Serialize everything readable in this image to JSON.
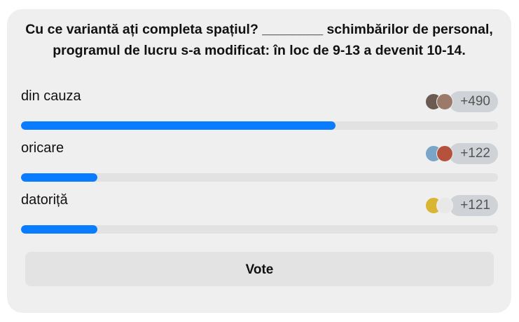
{
  "question": "Cu ce variantă ați completa spațiul? ________ schimbărilor de personal, programul de lucru s-a modificat: în loc de 9-13 a devenit 10-14.",
  "options": [
    {
      "label": "din cauza",
      "count": "+490",
      "percent": 66,
      "avatars": [
        "#6b5a52",
        "#9b7a6a"
      ]
    },
    {
      "label": "oricare",
      "count": "+122",
      "percent": 16,
      "avatars": [
        "#7aa5c8",
        "#b5523e"
      ]
    },
    {
      "label": "datoriță",
      "count": "+121",
      "percent": 16,
      "avatars": [
        "#d9b531",
        "#e8e8e8"
      ]
    }
  ],
  "vote_label": "Vote",
  "colors": {
    "accent": "#0a7cff",
    "card": "#efefef"
  }
}
